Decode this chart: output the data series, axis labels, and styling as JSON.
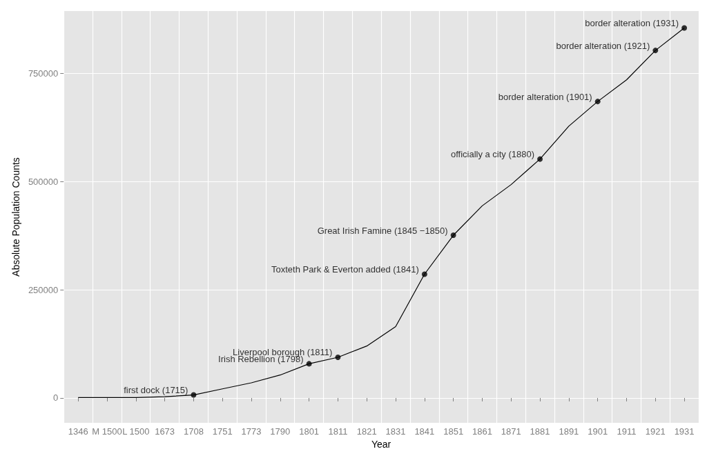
{
  "chart_data": {
    "type": "line",
    "xlabel": "Year",
    "ylabel": "Absolute Population Counts",
    "categories": [
      "1346",
      "M 1500",
      "L 1500",
      "1673",
      "1708",
      "1751",
      "1773",
      "1790",
      "1801",
      "1811",
      "1821",
      "1831",
      "1841",
      "1851",
      "1861",
      "1871",
      "1881",
      "1891",
      "1901",
      "1911",
      "1921",
      "1931"
    ],
    "series": [
      {
        "color": "#000000",
        "values": [
          1000,
          1000,
          1000,
          3000,
          7000,
          21000,
          35000,
          53000,
          79000,
          94000,
          120000,
          165000,
          286000,
          376000,
          444000,
          493000,
          552000,
          628000,
          685000,
          735000,
          803000,
          855000
        ]
      }
    ],
    "ylim": [
      -57600,
      894000
    ],
    "yticks": [
      0,
      250000,
      500000,
      750000
    ],
    "grid": true,
    "marker": "none",
    "line_style": "solid",
    "annotations": [
      {
        "text": "first dock (1715)",
        "x": "1708",
        "y": 7000
      },
      {
        "text": "Irish Rebellion (1798)",
        "x": "1801",
        "y": 79000
      },
      {
        "text": "Liverpool borough (1811)",
        "x": "1811",
        "y": 94000
      },
      {
        "text": "Toxteth Park & Everton added (1841)",
        "x": "1841",
        "y": 286000
      },
      {
        "text": "Great Irish Famine (1845 −1850)",
        "x": "1851",
        "y": 376000
      },
      {
        "text": "officially a city (1880)",
        "x": "1881",
        "y": 552000
      },
      {
        "text": "border alteration (1901)",
        "x": "1901",
        "y": 685000
      },
      {
        "text": "border alteration (1921)",
        "x": "1921",
        "y": 803000
      },
      {
        "text": "border alteration (1931)",
        "x": "1931",
        "y": 855000
      }
    ]
  }
}
